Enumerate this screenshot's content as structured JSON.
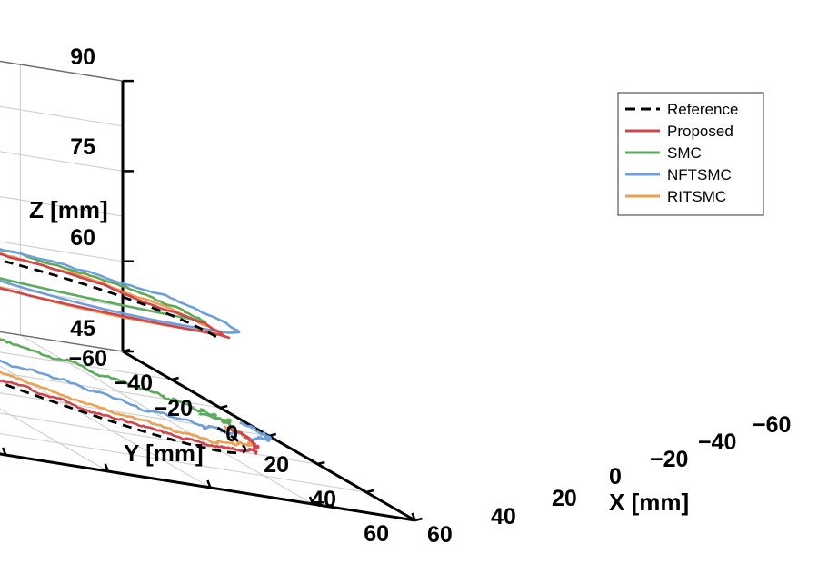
{
  "chart_data": {
    "type": "line",
    "projection": "3d",
    "title": "",
    "xlabel": "X [mm]",
    "ylabel": "Y [mm]",
    "zlabel": "Z [mm]",
    "xlim": [
      -60,
      60
    ],
    "ylim": [
      -60,
      60
    ],
    "zlim": [
      45,
      90
    ],
    "xticks": [
      60,
      40,
      20,
      0,
      -20,
      -40,
      -60
    ],
    "xtick_labels": [
      "60",
      "40",
      "20",
      "0",
      "−20",
      "−40",
      "−60"
    ],
    "yticks": [
      -60,
      -40,
      -20,
      0,
      20,
      40,
      60
    ],
    "ytick_labels": [
      "−60",
      "−40",
      "−20",
      "0",
      "20",
      "40",
      "60"
    ],
    "zticks": [
      45,
      60,
      75,
      90
    ],
    "ztick_labels": [
      "45",
      "60",
      "75",
      "90"
    ],
    "grid": true,
    "legend_position": "top-right",
    "series": [
      {
        "name": "Reference",
        "color": "#000000",
        "style": "dashed",
        "description": "circle radius 50 mm centred at origin, z = 45 to 60"
      },
      {
        "name": "Proposed",
        "color": "#d0454c",
        "style": "solid"
      },
      {
        "name": "SMC",
        "color": "#5daa5c",
        "style": "solid"
      },
      {
        "name": "NFTSMC",
        "color": "#6f9fd8",
        "style": "solid"
      },
      {
        "name": "RITSMC",
        "color": "#eba154",
        "style": "solid"
      }
    ]
  }
}
